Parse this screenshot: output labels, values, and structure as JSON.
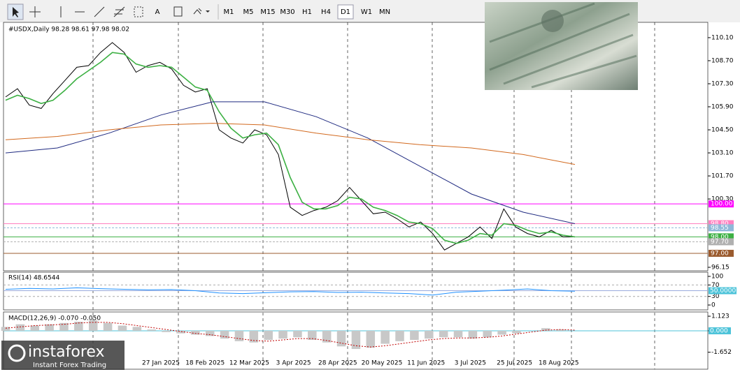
{
  "toolbar": {
    "tools": [
      "A"
    ],
    "timeframes": [
      "M1",
      "M5",
      "M15",
      "M30",
      "H1",
      "H4",
      "D1",
      "W1",
      "MN"
    ],
    "active": "D1"
  },
  "chart_data": [
    {
      "type": "line",
      "title": "#USDX,Daily  98.28 98.61 97.98 98.02",
      "xtick_labels": [
        "27 Jan 2025",
        "18 Feb 2025",
        "12 Mar 2025",
        "3 Apr 2025",
        "28 Apr 2025",
        "20 May 2025",
        "11 Jun 2025",
        "3 Jul 2025",
        "25 Jul 2025",
        "18 Aug 2025"
      ],
      "ylim": [
        95.98,
        111.03
      ],
      "yticks": [
        {
          "value": 110.1,
          "label": "110.10"
        },
        {
          "value": 108.7,
          "label": "108.70"
        },
        {
          "value": 107.3,
          "label": "107.30"
        },
        {
          "value": 105.9,
          "label": "105.90"
        },
        {
          "value": 104.5,
          "label": "104.50"
        },
        {
          "value": 103.1,
          "label": "103.10"
        },
        {
          "value": 101.7,
          "label": "101.70"
        },
        {
          "value": 100.3,
          "label": "100.30"
        },
        {
          "value": 96.15,
          "label": "96.15"
        }
      ],
      "levels": [
        {
          "value": 100,
          "label": "100.00",
          "color": "#ff00ff"
        },
        {
          "value": 98.8,
          "label": "98.80",
          "color": "#ff80c0"
        },
        {
          "value": 98.55,
          "label": "98.55",
          "color": "#8fb8d8"
        },
        {
          "value": 98,
          "label": "98.00",
          "color": "#3cb043"
        },
        {
          "value": 97.7,
          "label": "97.70",
          "color": "#b0b0b0"
        },
        {
          "value": 97,
          "label": "97.00",
          "color": "#9b5b2e"
        }
      ],
      "series": [
        {
          "name": "Close",
          "color": "#000000",
          "values": [
            106.5,
            107.0,
            106.0,
            105.8,
            106.7,
            107.5,
            108.3,
            108.4,
            109.2,
            109.8,
            109.2,
            108.0,
            108.4,
            108.6,
            108.2,
            107.2,
            106.8,
            107.0,
            104.5,
            104.0,
            103.7,
            104.5,
            104.2,
            103.0,
            99.8,
            99.3,
            99.6,
            99.8,
            100.2,
            101.0,
            100.2,
            99.4,
            99.5,
            99.1,
            98.6,
            98.9,
            98.2,
            97.2,
            97.6,
            98.0,
            98.6,
            97.9,
            99.7,
            98.6,
            98.2,
            98.0,
            98.4,
            98.0,
            98.0
          ]
        },
        {
          "name": "MA fast",
          "color": "#3cb043",
          "values": [
            106.3,
            106.6,
            106.4,
            106.1,
            106.3,
            106.9,
            107.6,
            108.1,
            108.6,
            109.2,
            109.1,
            108.5,
            108.3,
            108.4,
            108.3,
            107.7,
            107.1,
            106.9,
            105.6,
            104.6,
            104.0,
            104.2,
            104.3,
            103.6,
            101.6,
            100.1,
            99.7,
            99.7,
            99.9,
            100.4,
            100.3,
            99.8,
            99.6,
            99.3,
            98.9,
            98.8,
            98.5,
            97.8,
            97.6,
            97.8,
            98.2,
            98.1,
            98.8,
            98.7,
            98.4,
            98.2,
            98.3,
            98.1,
            98.0
          ]
        },
        {
          "name": "MA slow",
          "color": "#1f2a80",
          "values": [
            103.1,
            103.4,
            104.3,
            105.4,
            106.2,
            106.2,
            105.3,
            104.0,
            102.3,
            100.6,
            99.5,
            98.8
          ]
        },
        {
          "name": "MA long",
          "color": "#d2691e",
          "values": [
            103.9,
            104.1,
            104.5,
            104.8,
            104.9,
            104.8,
            104.3,
            103.9,
            103.6,
            103.4,
            103.0,
            102.4
          ]
        }
      ]
    },
    {
      "type": "line",
      "title": "RSI(14) 48.6544",
      "ylim": [
        -17,
        114.6
      ],
      "yticks": [
        100,
        70,
        30,
        0
      ],
      "level": {
        "value": 50,
        "label": "50.0000"
      },
      "series": [
        {
          "name": "RSI",
          "color": "#1e90ff",
          "values": [
            55,
            58,
            56,
            60,
            57,
            55,
            53,
            54,
            50,
            42,
            40,
            43,
            46,
            47,
            44,
            45,
            42,
            40,
            35,
            45,
            48,
            52,
            56,
            50,
            48
          ]
        }
      ]
    },
    {
      "type": "bar",
      "title": "MACD(12,26,9) -0.070 -0.050",
      "ylim": [
        -2.958,
        1.449
      ],
      "yticks": [
        1.123,
        {
          "value": 0,
          "label": "0.000"
        },
        -1.652
      ],
      "values": [
        0.3,
        0.5,
        0.4,
        0.5,
        0.6,
        0.7,
        0.8,
        0.6,
        0.4,
        0.3,
        0.1,
        -0.1,
        -0.2,
        -0.3,
        -0.4,
        -0.6,
        -0.8,
        -0.9,
        -0.7,
        -0.6,
        -0.5,
        -0.7,
        -0.9,
        -1.2,
        -1.4,
        -1.3,
        -1.0,
        -0.8,
        -0.7,
        -0.6,
        -0.5,
        -0.5,
        -0.6,
        -0.5,
        -0.3,
        -0.2,
        0.0,
        0.2,
        0.1,
        0.0
      ],
      "signal": [
        0.2,
        0.3,
        0.4,
        0.45,
        0.5,
        0.6,
        0.65,
        0.65,
        0.55,
        0.4,
        0.25,
        0.1,
        -0.05,
        -0.2,
        -0.3,
        -0.45,
        -0.6,
        -0.75,
        -0.8,
        -0.7,
        -0.6,
        -0.6,
        -0.75,
        -0.95,
        -1.15,
        -1.25,
        -1.15,
        -1.0,
        -0.85,
        -0.7,
        -0.6,
        -0.55,
        -0.55,
        -0.5,
        -0.4,
        -0.25,
        -0.1,
        0.05,
        0.1,
        0.05
      ]
    }
  ],
  "logo": {
    "brand": "instaforex",
    "tagline": "Instant Forex Trading"
  }
}
